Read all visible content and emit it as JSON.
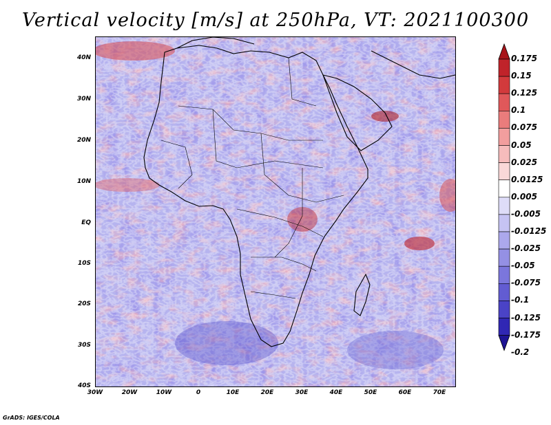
{
  "title": "Vertical velocity [m/s] at 250hPa, VT: 2021100300",
  "footer": "GrADS: IGES/COLA",
  "latitude_labels": [
    "40N",
    "30N",
    "20N",
    "10N",
    "EQ",
    "10S",
    "20S",
    "30S",
    "40S"
  ],
  "longitude_labels": [
    "30W",
    "20W",
    "10W",
    "0",
    "10E",
    "20E",
    "30E",
    "40E",
    "50E",
    "60E",
    "70E"
  ],
  "colorbar": {
    "labels": [
      "0.175",
      "0.15",
      "0.125",
      "0.1",
      "0.075",
      "0.05",
      "0.025",
      "0.0125",
      "0.005",
      "-0.005",
      "-0.0125",
      "-0.025",
      "-0.05",
      "-0.075",
      "-0.1",
      "-0.125",
      "-0.175",
      "-0.2"
    ],
    "colors": [
      "#a8141a",
      "#c0232a",
      "#d23a3c",
      "#e0585a",
      "#ea7c7c",
      "#f29e9e",
      "#f6bcbc",
      "#fad8d8",
      "#ffffff",
      "#dedcf8",
      "#c6c3f3",
      "#aca8ec",
      "#9490e4",
      "#7b76dc",
      "#625cd2",
      "#4a43c6",
      "#3027b4",
      "#1e1494"
    ]
  },
  "map_colors": {
    "ocean_base": "#b9b7f0",
    "land_base": "#cbb8e0",
    "coastline": "#000000"
  }
}
